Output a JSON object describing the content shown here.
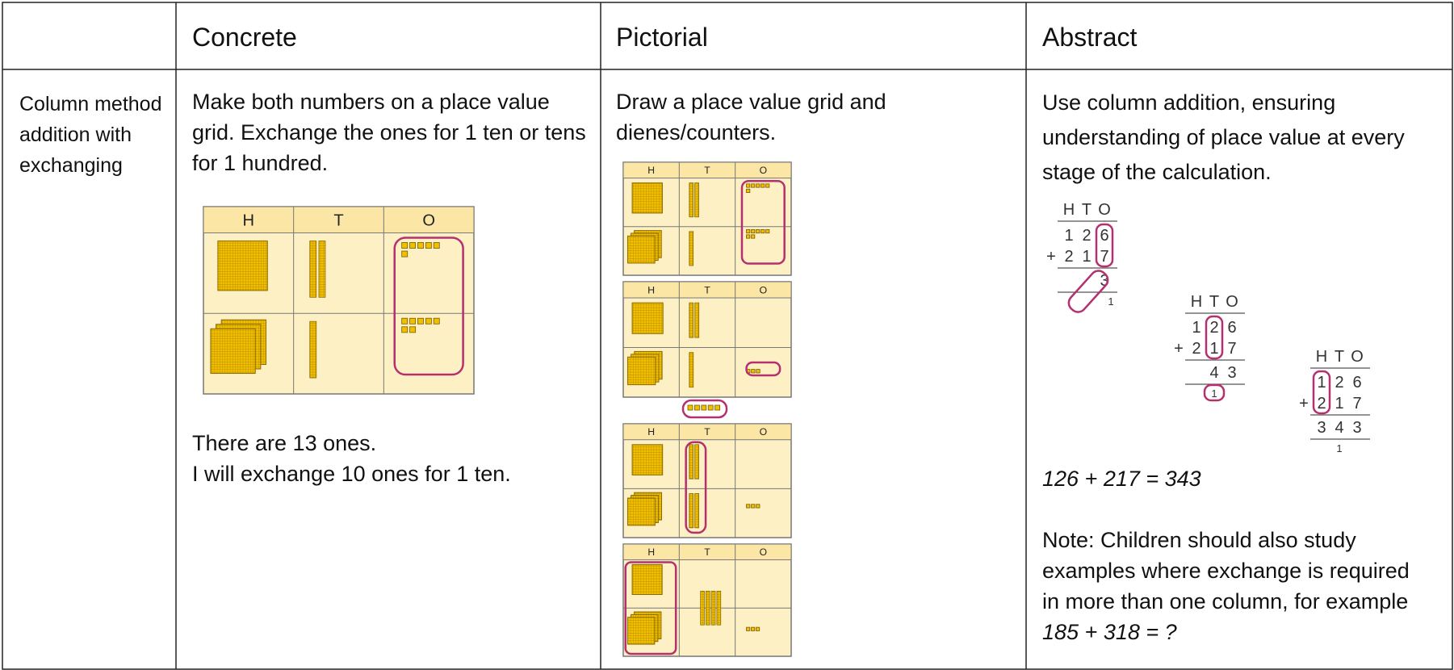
{
  "header": {
    "concrete": "Concrete",
    "pictorial": "Pictorial",
    "abstract": "Abstract"
  },
  "row": {
    "label": "Column method addition with exchanging",
    "concrete": {
      "instruction": "Make both numbers on a place value grid. Exchange the ones for 1 ten or tens for 1 hundred.",
      "explanation": [
        "There are 13 ones.",
        "I will exchange 10 ones for 1 ten."
      ]
    },
    "pictorial": {
      "instruction": "Draw a place value grid and dienes/counters."
    },
    "abstract": {
      "instruction": "Use column addition, ensuring understanding of place value at every stage of the calculation.",
      "calculations": [
        {
          "addends": [
            "126",
            "217"
          ],
          "operator": "+",
          "result": "3",
          "carry": "1"
        },
        {
          "addends": [
            "126",
            "217"
          ],
          "operator": "+",
          "result": "43",
          "carry": "1"
        },
        {
          "addends": [
            "126",
            "217"
          ],
          "operator": "+",
          "result": "343",
          "carry": "1"
        }
      ],
      "equation": "126 + 217 = 343",
      "note": "Note: Children should also study examples where exchange is required in more than one column, for example",
      "note_example": "185 + 318 = ?"
    }
  },
  "place_value_headers": [
    "H",
    "T",
    "O"
  ]
}
